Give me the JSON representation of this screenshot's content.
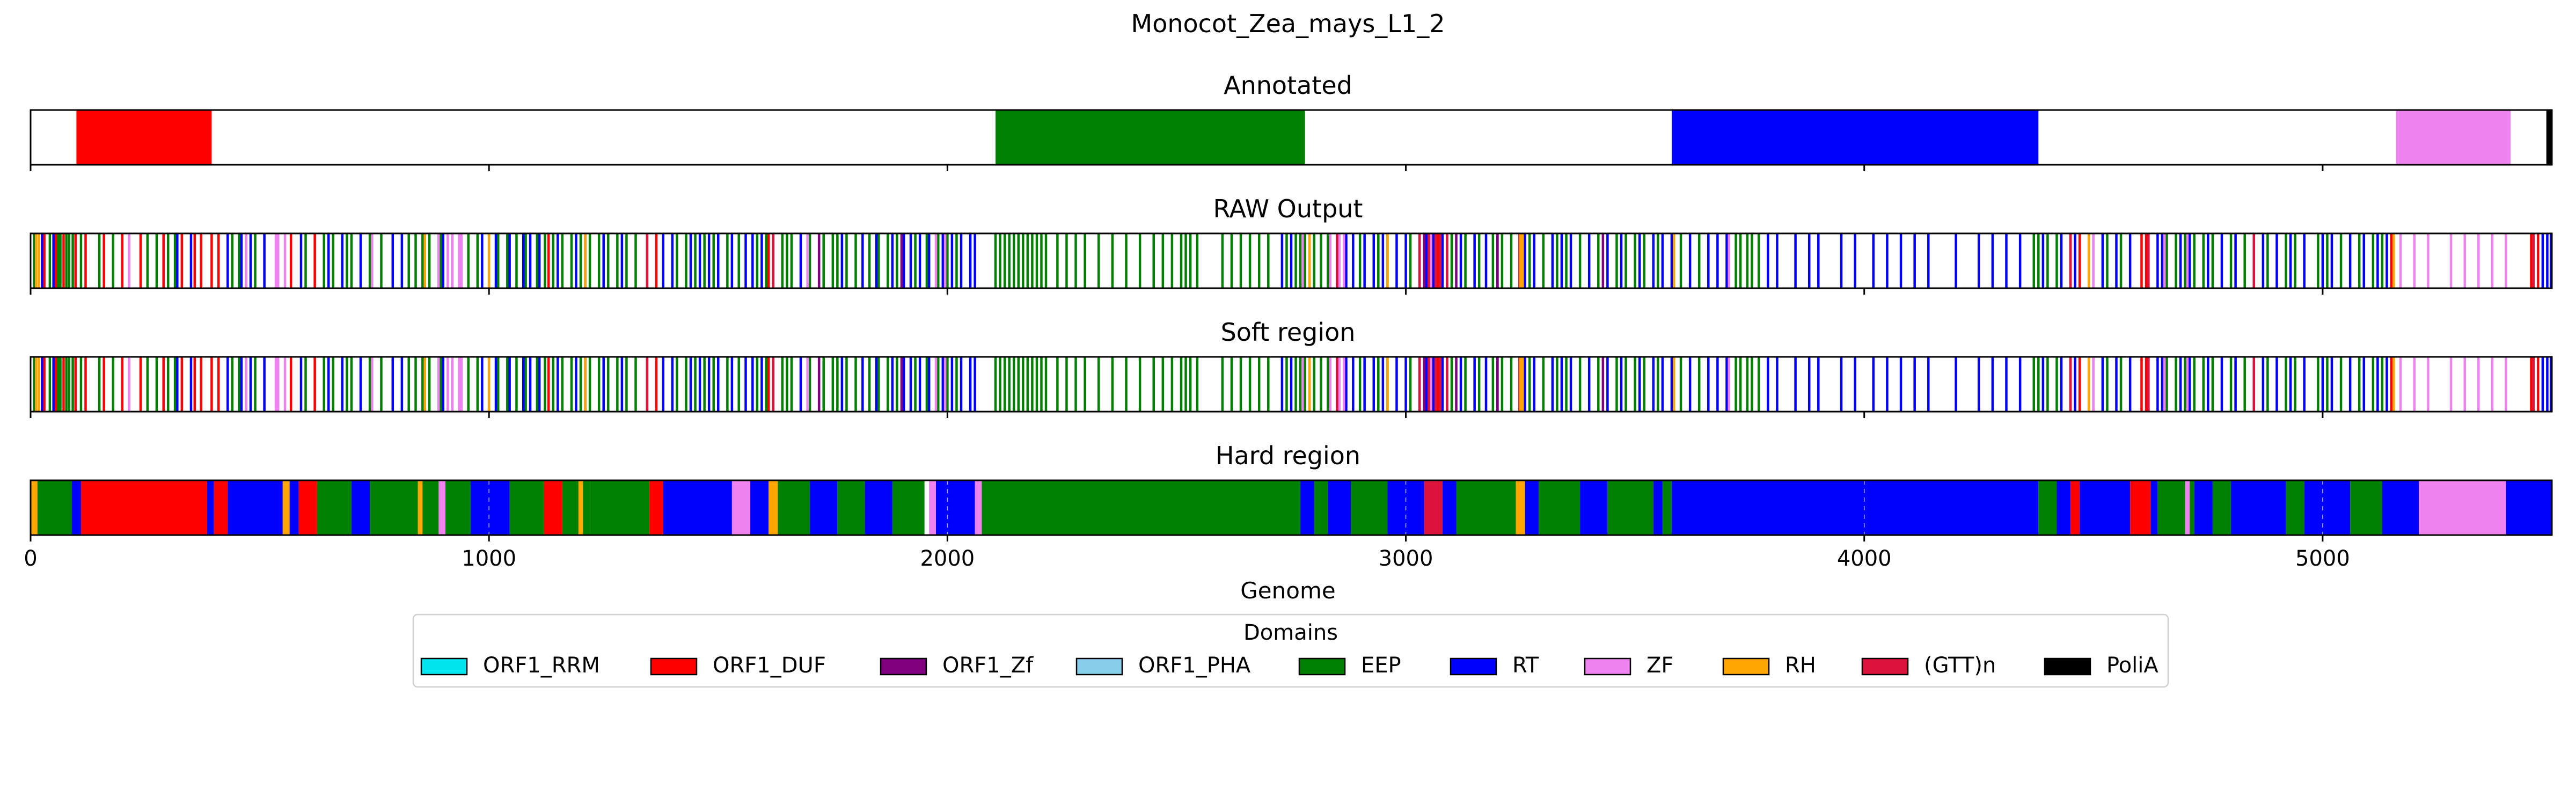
{
  "chart_data": {
    "type": "bar",
    "title": "Monocot_Zea_mays_L1_2",
    "xlabel": "Genome",
    "xlim": [
      0,
      5500
    ],
    "xticks": [
      0,
      1000,
      2000,
      3000,
      4000,
      5000
    ],
    "legend": {
      "title": "Domains",
      "placement": "bottom-center",
      "entries": [
        {
          "name": "ORF1_RRM",
          "color": "#00e5ee"
        },
        {
          "name": "ORF1_DUF",
          "color": "#ff0000"
        },
        {
          "name": "ORF1_Zf",
          "color": "#800080"
        },
        {
          "name": "ORF1_PHA",
          "color": "#87ceeb"
        },
        {
          "name": "EEP",
          "color": "#008000"
        },
        {
          "name": "RT",
          "color": "#0000ff"
        },
        {
          "name": "ZF",
          "color": "#ee82ee"
        },
        {
          "name": "RH",
          "color": "#ffa500"
        },
        {
          "name": "(GTT)n",
          "color": "#dc143c"
        },
        {
          "name": "PoliA",
          "color": "#000000"
        }
      ]
    },
    "panels": [
      {
        "title": "Annotated",
        "segments": [
          {
            "domain": "ORF1_DUF",
            "start": 100,
            "end": 395
          },
          {
            "domain": "EEP",
            "start": 2105,
            "end": 2780
          },
          {
            "domain": "RT",
            "start": 3580,
            "end": 4380
          },
          {
            "domain": "ZF",
            "start": 5160,
            "end": 5410
          },
          {
            "domain": "PoliA",
            "start": 5488,
            "end": 5500
          }
        ]
      },
      {
        "title": "RAW Output",
        "lines": {
          "ORF1_DUF": [
            30,
            55,
            72,
            98,
            120,
            160,
            200,
            240,
            290,
            330,
            358,
            372,
            395,
            410,
            568,
            620,
            1130,
            1345,
            1365,
            1610,
            3070,
            3248,
            4450,
            4470,
            4605,
            4615,
            5150,
            5455,
            5470
          ],
          "EEP": [
            8,
            42,
            60,
            65,
            78,
            84,
            92,
            110,
            150,
            180,
            255,
            275,
            300,
            315,
            440,
            455,
            470,
            490,
            600,
            640,
            660,
            690,
            700,
            740,
            765,
            825,
            840,
            855,
            870,
            895,
            920,
            938,
            955,
            975,
            1000,
            1020,
            1040,
            1060,
            1080,
            1105,
            1122,
            1140,
            1160,
            1180,
            1200,
            1220,
            1240,
            1260,
            1280,
            1300,
            1320,
            1410,
            1430,
            1450,
            1470,
            1490,
            1520,
            1545,
            1585,
            1605,
            1640,
            1650,
            1660,
            1700,
            1730,
            1750,
            1760,
            1780,
            1800,
            1830,
            1850,
            1870,
            1890,
            1930,
            1955,
            1980,
            2000,
            2020,
            2105,
            2115,
            2125,
            2135,
            2145,
            2155,
            2165,
            2175,
            2185,
            2195,
            2205,
            2215,
            2240,
            2260,
            2280,
            2300,
            2330,
            2360,
            2390,
            2420,
            2450,
            2470,
            2490,
            2510,
            2520,
            2530,
            2545,
            2600,
            2620,
            2640,
            2660,
            2680,
            2700,
            2740,
            2760,
            2770,
            2780,
            2790,
            2800,
            2815,
            2830,
            2900,
            2940,
            2960,
            3010,
            3100,
            3130,
            3160,
            3190,
            3210,
            3230,
            3270,
            3300,
            3330,
            3350,
            3380,
            3420,
            3460,
            3480,
            3500,
            3520,
            3550,
            3600,
            3640,
            3720,
            3730,
            3745,
            3755,
            3770,
            4370,
            4380,
            4400,
            4420,
            4500,
            4530,
            4560,
            4660,
            4680,
            4700,
            4720,
            4740,
            4760,
            4800,
            4830,
            4880,
            4920,
            4940,
            4990,
            5010,
            5040,
            5080,
            5110,
            5130
          ],
          "RT": [
            25,
            50,
            320,
            350,
            430,
            460,
            480,
            510,
            540,
            590,
            650,
            680,
            720,
            790,
            810,
            860,
            900,
            985,
            1015,
            1045,
            1075,
            1090,
            1110,
            1150,
            1190,
            1210,
            1250,
            1290,
            1380,
            1400,
            1440,
            1460,
            1480,
            1500,
            1530,
            1560,
            1575,
            1595,
            1620,
            1680,
            1695,
            1720,
            1770,
            1815,
            1845,
            1880,
            1905,
            1920,
            1940,
            1960,
            1990,
            2010,
            2030,
            2050,
            2060,
            2730,
            2750,
            2850,
            2870,
            2885,
            2910,
            2930,
            2950,
            2980,
            3000,
            3030,
            3045,
            3060,
            3080,
            3120,
            3150,
            3175,
            3200,
            3260,
            3280,
            3320,
            3340,
            3360,
            3400,
            3440,
            3470,
            3510,
            3540,
            3560,
            3580,
            3620,
            3660,
            3680,
            3700,
            3790,
            3810,
            3850,
            3880,
            3900,
            3950,
            3980,
            4020,
            4050,
            4080,
            4110,
            4140,
            4200,
            4250,
            4280,
            4310,
            4340,
            4390,
            4430,
            4460,
            4490,
            4520,
            4550,
            4580,
            4620,
            4640,
            4650,
            4690,
            4710,
            4750,
            4780,
            4810,
            4850,
            4870,
            4900,
            4930,
            4960,
            5000,
            5020,
            5060,
            5090,
            5120,
            5140,
            5480,
            5490,
            5498
          ],
          "ZF": [
            215,
            470,
            535,
            540,
            555,
            745,
            890,
            910,
            920,
            935,
            940,
            1695,
            1975,
            1995,
            2775,
            2835,
            2855,
            2865,
            3055,
            3705,
            4500,
            4655,
            4705,
            5170,
            5200,
            5230,
            5280,
            5310,
            5340,
            5370,
            5400
          ],
          "RH": [
            12,
            18,
            860,
            1000,
            1210,
            2790,
            2960,
            3250,
            3255,
            3585,
            4490,
            5155
          ],
          "ORF1_Zf": [
            1720,
            1900,
            2850,
            3040,
            3090,
            3110,
            3200,
            3430
          ],
          "(GTT)n": [
            1345,
            1620,
            2850,
            3030,
            3050,
            3065,
            3075,
            3090,
            4450,
            4620,
            4850,
            5460
          ]
        }
      },
      {
        "title": "Soft region",
        "same_as": "RAW Output"
      },
      {
        "title": "Hard region",
        "segments": [
          {
            "domain": "EEP",
            "start": 0,
            "end": 110
          },
          {
            "domain": "RH",
            "start": 0,
            "end": 15
          },
          {
            "domain": "RT",
            "start": 90,
            "end": 110
          },
          {
            "domain": "ORF1_DUF",
            "start": 110,
            "end": 385
          },
          {
            "domain": "RT",
            "start": 385,
            "end": 400
          },
          {
            "domain": "ORF1_DUF",
            "start": 400,
            "end": 430
          },
          {
            "domain": "RT",
            "start": 430,
            "end": 550
          },
          {
            "domain": "RH",
            "start": 550,
            "end": 565
          },
          {
            "domain": "RT",
            "start": 565,
            "end": 585
          },
          {
            "domain": "ORF1_DUF",
            "start": 585,
            "end": 625
          },
          {
            "domain": "EEP",
            "start": 625,
            "end": 700
          },
          {
            "domain": "RT",
            "start": 700,
            "end": 740
          },
          {
            "domain": "EEP",
            "start": 740,
            "end": 845
          },
          {
            "domain": "RH",
            "start": 845,
            "end": 855
          },
          {
            "domain": "EEP",
            "start": 855,
            "end": 960
          },
          {
            "domain": "ZF",
            "start": 890,
            "end": 905
          },
          {
            "domain": "RT",
            "start": 960,
            "end": 1045
          },
          {
            "domain": "EEP",
            "start": 1045,
            "end": 1120
          },
          {
            "domain": "ORF1_DUF",
            "start": 1120,
            "end": 1160
          },
          {
            "domain": "EEP",
            "start": 1160,
            "end": 1220
          },
          {
            "domain": "RH",
            "start": 1195,
            "end": 1205
          },
          {
            "domain": "EEP",
            "start": 1220,
            "end": 1350
          },
          {
            "domain": "ORF1_DUF",
            "start": 1350,
            "end": 1380
          },
          {
            "domain": "RT",
            "start": 1380,
            "end": 1530
          },
          {
            "domain": "ZF",
            "start": 1530,
            "end": 1570
          },
          {
            "domain": "RT",
            "start": 1570,
            "end": 1610
          },
          {
            "domain": "RH",
            "start": 1610,
            "end": 1630
          },
          {
            "domain": "EEP",
            "start": 1630,
            "end": 1700
          },
          {
            "domain": "RT",
            "start": 1700,
            "end": 1760
          },
          {
            "domain": "EEP",
            "start": 1760,
            "end": 1820
          },
          {
            "domain": "RT",
            "start": 1820,
            "end": 1880
          },
          {
            "domain": "EEP",
            "start": 1880,
            "end": 1950
          },
          {
            "domain": "ZF",
            "start": 1960,
            "end": 1975
          },
          {
            "domain": "RT",
            "start": 1975,
            "end": 2060
          },
          {
            "domain": "ZF",
            "start": 2060,
            "end": 2075
          },
          {
            "domain": "EEP",
            "start": 2075,
            "end": 2770
          },
          {
            "domain": "RT",
            "start": 2770,
            "end": 2800
          },
          {
            "domain": "EEP",
            "start": 2800,
            "end": 2830
          },
          {
            "domain": "RT",
            "start": 2830,
            "end": 2880
          },
          {
            "domain": "EEP",
            "start": 2880,
            "end": 2960
          },
          {
            "domain": "RT",
            "start": 2960,
            "end": 3040
          },
          {
            "domain": "(GTT)n",
            "start": 3040,
            "end": 3080
          },
          {
            "domain": "RT",
            "start": 3080,
            "end": 3110
          },
          {
            "domain": "EEP",
            "start": 3110,
            "end": 3240
          },
          {
            "domain": "RH",
            "start": 3240,
            "end": 3260
          },
          {
            "domain": "RT",
            "start": 3260,
            "end": 3290
          },
          {
            "domain": "EEP",
            "start": 3290,
            "end": 3380
          },
          {
            "domain": "RT",
            "start": 3380,
            "end": 3440
          },
          {
            "domain": "EEP",
            "start": 3440,
            "end": 3540
          },
          {
            "domain": "RT",
            "start": 3540,
            "end": 3560
          },
          {
            "domain": "EEP",
            "start": 3560,
            "end": 3580
          },
          {
            "domain": "RT",
            "start": 3580,
            "end": 4380
          },
          {
            "domain": "EEP",
            "start": 4380,
            "end": 4420
          },
          {
            "domain": "RT",
            "start": 4420,
            "end": 4450
          },
          {
            "domain": "ORF1_DUF",
            "start": 4450,
            "end": 4470
          },
          {
            "domain": "RT",
            "start": 4470,
            "end": 4580
          },
          {
            "domain": "ORF1_DUF",
            "start": 4580,
            "end": 4625
          },
          {
            "domain": "RT",
            "start": 4625,
            "end": 4640
          },
          {
            "domain": "EEP",
            "start": 4640,
            "end": 4720
          },
          {
            "domain": "ZF",
            "start": 4700,
            "end": 4710
          },
          {
            "domain": "RT",
            "start": 4720,
            "end": 4760
          },
          {
            "domain": "EEP",
            "start": 4760,
            "end": 4800
          },
          {
            "domain": "RT",
            "start": 4800,
            "end": 4920
          },
          {
            "domain": "EEP",
            "start": 4920,
            "end": 4960
          },
          {
            "domain": "RT",
            "start": 4960,
            "end": 5060
          },
          {
            "domain": "EEP",
            "start": 5060,
            "end": 5130
          },
          {
            "domain": "RT",
            "start": 5130,
            "end": 5210
          },
          {
            "domain": "ZF",
            "start": 5210,
            "end": 5400
          },
          {
            "domain": "RT",
            "start": 5400,
            "end": 5500
          }
        ]
      }
    ]
  }
}
